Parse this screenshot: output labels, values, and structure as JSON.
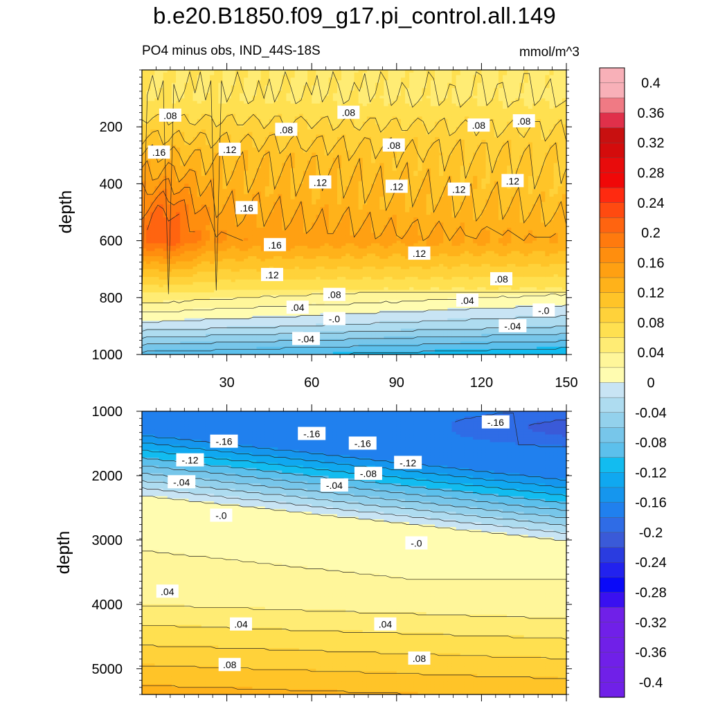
{
  "title": "b.e20.B1850.f09_g17.pi_control.all.149",
  "subtitle": "PO4 minus obs, IND_44S-18S",
  "units": "mmol/m^3",
  "colors": {
    "negative": [
      "#c8e4f4",
      "#aedcf0",
      "#93d1ec",
      "#77c6ea",
      "#5cc0ec",
      "#12bcf0",
      "#10a8f0",
      "#1596ee",
      "#2080ee",
      "#2f6ce6",
      "#3a5ad8",
      "#2a3ce0",
      "#2222ee",
      "#0a0af8",
      "#3a10f0",
      "#7020e8"
    ],
    "positive": [
      "#fffcb0",
      "#fff69a",
      "#ffec74",
      "#ffe050",
      "#ffd23a",
      "#ffc428",
      "#ffb21a",
      "#ffa012",
      "#ff8e0e",
      "#ff7a0e",
      "#ff6410",
      "#ff4a10",
      "#ff2a10",
      "#f00808",
      "#e80c0c",
      "#d40c0c",
      "#c81010",
      "#e0304a",
      "#f07a84",
      "#f8b0b8"
    ]
  },
  "chart_data": [
    {
      "type": "heatmap",
      "panel": "upper",
      "ylabel": "depth",
      "xlabel": "",
      "x_ticks": [
        "30",
        "60",
        "90",
        "120",
        "150"
      ],
      "x_tick_values": [
        30,
        60,
        90,
        120,
        150
      ],
      "xlim": [
        0,
        150
      ],
      "y_ticks": [
        "200",
        "400",
        "600",
        "800",
        "1000"
      ],
      "y_tick_values": [
        200,
        400,
        600,
        800,
        1000
      ],
      "ylim": [
        0,
        1000
      ],
      "y_reversed": true,
      "contour_levels": [
        0.2,
        0.16,
        0.12,
        0.08,
        0.04,
        0.0,
        -0.04,
        -0.08
      ],
      "contour_level_depths": [
        575,
        660,
        745,
        805,
        850,
        890,
        945,
        990
      ],
      "contour_labels": [
        {
          "text": ".08",
          "x": 10,
          "y": 160
        },
        {
          "text": ".08",
          "x": 73,
          "y": 150
        },
        {
          "text": ".08",
          "x": 51,
          "y": 210
        },
        {
          "text": ".08",
          "x": 89,
          "y": 265
        },
        {
          "text": ".08",
          "x": 119,
          "y": 195
        },
        {
          "text": ".08",
          "x": 135,
          "y": 180
        },
        {
          "text": ".16",
          "x": 6,
          "y": 290
        },
        {
          "text": ".12",
          "x": 31,
          "y": 280
        },
        {
          "text": ".12",
          "x": 63,
          "y": 395
        },
        {
          "text": ".12",
          "x": 90,
          "y": 410
        },
        {
          "text": ".12",
          "x": 112,
          "y": 420
        },
        {
          "text": ".12",
          "x": 131,
          "y": 390
        },
        {
          "text": ".16",
          "x": 37,
          "y": 485
        },
        {
          "text": ".16",
          "x": 47,
          "y": 615
        },
        {
          "text": ".12",
          "x": 46,
          "y": 720
        },
        {
          "text": ".12",
          "x": 98,
          "y": 645
        },
        {
          "text": ".08",
          "x": 68,
          "y": 790
        },
        {
          "text": ".08",
          "x": 127,
          "y": 735
        },
        {
          "text": ".04",
          "x": 55,
          "y": 835
        },
        {
          "text": ".04",
          "x": 115,
          "y": 810
        },
        {
          "text": "-.0",
          "x": 68,
          "y": 875
        },
        {
          "text": "-.0",
          "x": 142,
          "y": 845
        },
        {
          "text": "-.04",
          "x": 58,
          "y": 945
        },
        {
          "text": "-.04",
          "x": 131,
          "y": 900
        }
      ]
    },
    {
      "type": "heatmap",
      "panel": "lower",
      "ylabel": "depth",
      "xlabel": "",
      "x_tick_values": [
        30,
        60,
        90,
        120,
        150
      ],
      "xlim": [
        0,
        150
      ],
      "y_ticks": [
        "1000",
        "2000",
        "3000",
        "4000",
        "5000"
      ],
      "y_tick_values": [
        1000,
        2000,
        3000,
        4000,
        5000
      ],
      "ylim": [
        1000,
        5400
      ],
      "y_reversed": true,
      "contour_levels": [
        -0.16,
        -0.12,
        -0.08,
        -0.04,
        0.0,
        0.04,
        0.08,
        0.12
      ],
      "contour_labels": [
        {
          "text": "-.16",
          "x": 29,
          "y": 1470
        },
        {
          "text": "-.16",
          "x": 60,
          "y": 1350
        },
        {
          "text": "-.16",
          "x": 78,
          "y": 1500
        },
        {
          "text": "-.16",
          "x": 125,
          "y": 1170
        },
        {
          "text": "-.12",
          "x": 17,
          "y": 1760
        },
        {
          "text": "-.12",
          "x": 94,
          "y": 1800
        },
        {
          "text": "-.08",
          "x": 80,
          "y": 1970
        },
        {
          "text": "-.04",
          "x": 14,
          "y": 2100
        },
        {
          "text": "-.04",
          "x": 68,
          "y": 2150
        },
        {
          "text": "-.0",
          "x": 28,
          "y": 2620
        },
        {
          "text": "-.0",
          "x": 97,
          "y": 3050
        },
        {
          "text": ".04",
          "x": 9,
          "y": 3800
        },
        {
          "text": ".04",
          "x": 35,
          "y": 4310
        },
        {
          "text": ".04",
          "x": 86,
          "y": 4310
        },
        {
          "text": ".08",
          "x": 31,
          "y": 4940
        },
        {
          "text": ".08",
          "x": 98,
          "y": 4840
        }
      ]
    }
  ],
  "colorbar": {
    "labels": [
      "0.4",
      "0.36",
      "0.32",
      "0.28",
      "0.24",
      "0.2",
      "0.16",
      "0.12",
      "0.08",
      "0.04",
      "0",
      "-0.04",
      "-0.08",
      "-0.12",
      "-0.16",
      "-0.2",
      "-0.24",
      "-0.28",
      "-0.32",
      "-0.36",
      "-0.4"
    ],
    "values": [
      0.4,
      0.36,
      0.32,
      0.28,
      0.24,
      0.2,
      0.16,
      0.12,
      0.08,
      0.04,
      0,
      -0.04,
      -0.08,
      -0.12,
      -0.16,
      -0.2,
      -0.24,
      -0.28,
      -0.32,
      -0.36,
      -0.4
    ],
    "min": -0.42,
    "max": 0.42,
    "step": 0.02
  }
}
